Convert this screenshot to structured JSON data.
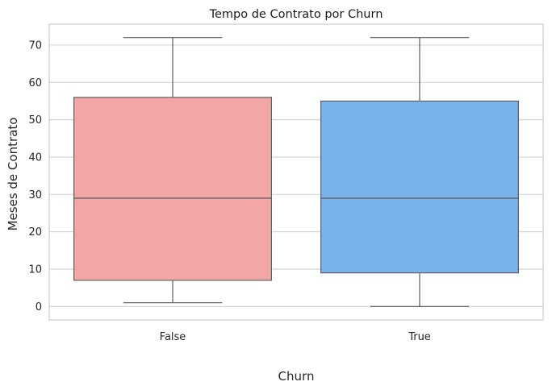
{
  "chart_data": {
    "type": "box",
    "title": "Tempo de Contrato por Churn",
    "xlabel": "Churn",
    "ylabel": "Meses de Contrato",
    "ylim": [
      -3.6,
      75.6
    ],
    "yticks": [
      0,
      10,
      20,
      30,
      40,
      50,
      60,
      70
    ],
    "grid": "y",
    "boxes": [
      {
        "category": "False",
        "whisker_low": 1,
        "q1": 7,
        "median": 29,
        "q3": 56,
        "whisker_high": 72,
        "color": "#f2a6a6"
      },
      {
        "category": "True",
        "whisker_low": 0,
        "q1": 9,
        "median": 29,
        "q3": 55,
        "whisker_high": 72,
        "color": "#78b3ec"
      }
    ]
  }
}
